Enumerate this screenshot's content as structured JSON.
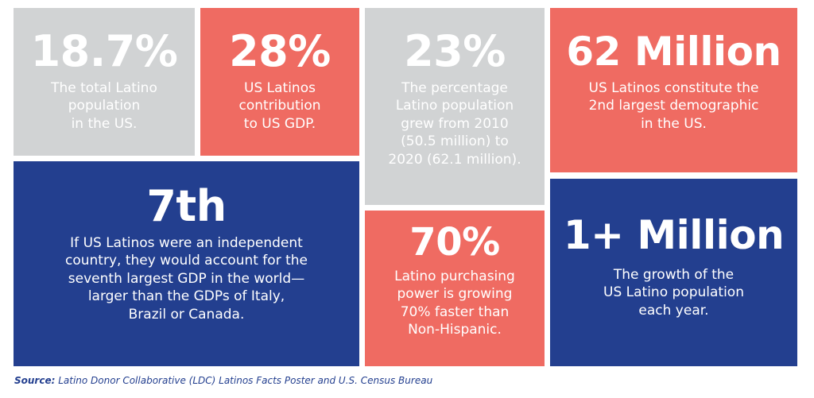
{
  "colors": {
    "gray": "#d1d3d4",
    "coral": "#ef6b62",
    "navy": "#233f8f",
    "text": "#ffffff"
  },
  "tiles": [
    {
      "stat": "18.7%",
      "desc": [
        "The total Latino",
        "population",
        "in the US."
      ]
    },
    {
      "stat": "28%",
      "desc": [
        "US Latinos",
        "contribution",
        "to US GDP."
      ]
    },
    {
      "stat": "23%",
      "desc": [
        "The percentage",
        "Latino population",
        "grew from 2010",
        "(50.5 million) to",
        "2020 (62.1 million)."
      ]
    },
    {
      "stat": "62 Million",
      "desc": [
        "US Latinos constitute the",
        "2nd largest demographic",
        "in the US."
      ]
    },
    {
      "stat": "7th",
      "desc": [
        "If US Latinos were an independent",
        "country, they would account for the",
        "seventh largest GDP in the world—",
        "larger than the GDPs of Italy,",
        "Brazil or Canada."
      ]
    },
    {
      "stat": "70%",
      "desc": [
        "Latino purchasing",
        "power is growing",
        "70% faster than",
        "Non-Hispanic."
      ]
    },
    {
      "stat": "1+ Million",
      "desc": [
        "The growth of the",
        "US Latino population",
        "each year."
      ]
    }
  ],
  "footer": {
    "label": "Source:",
    "text": " Latino Donor Collaborative (LDC) Latinos Facts Poster and U.S. Census Bureau"
  }
}
